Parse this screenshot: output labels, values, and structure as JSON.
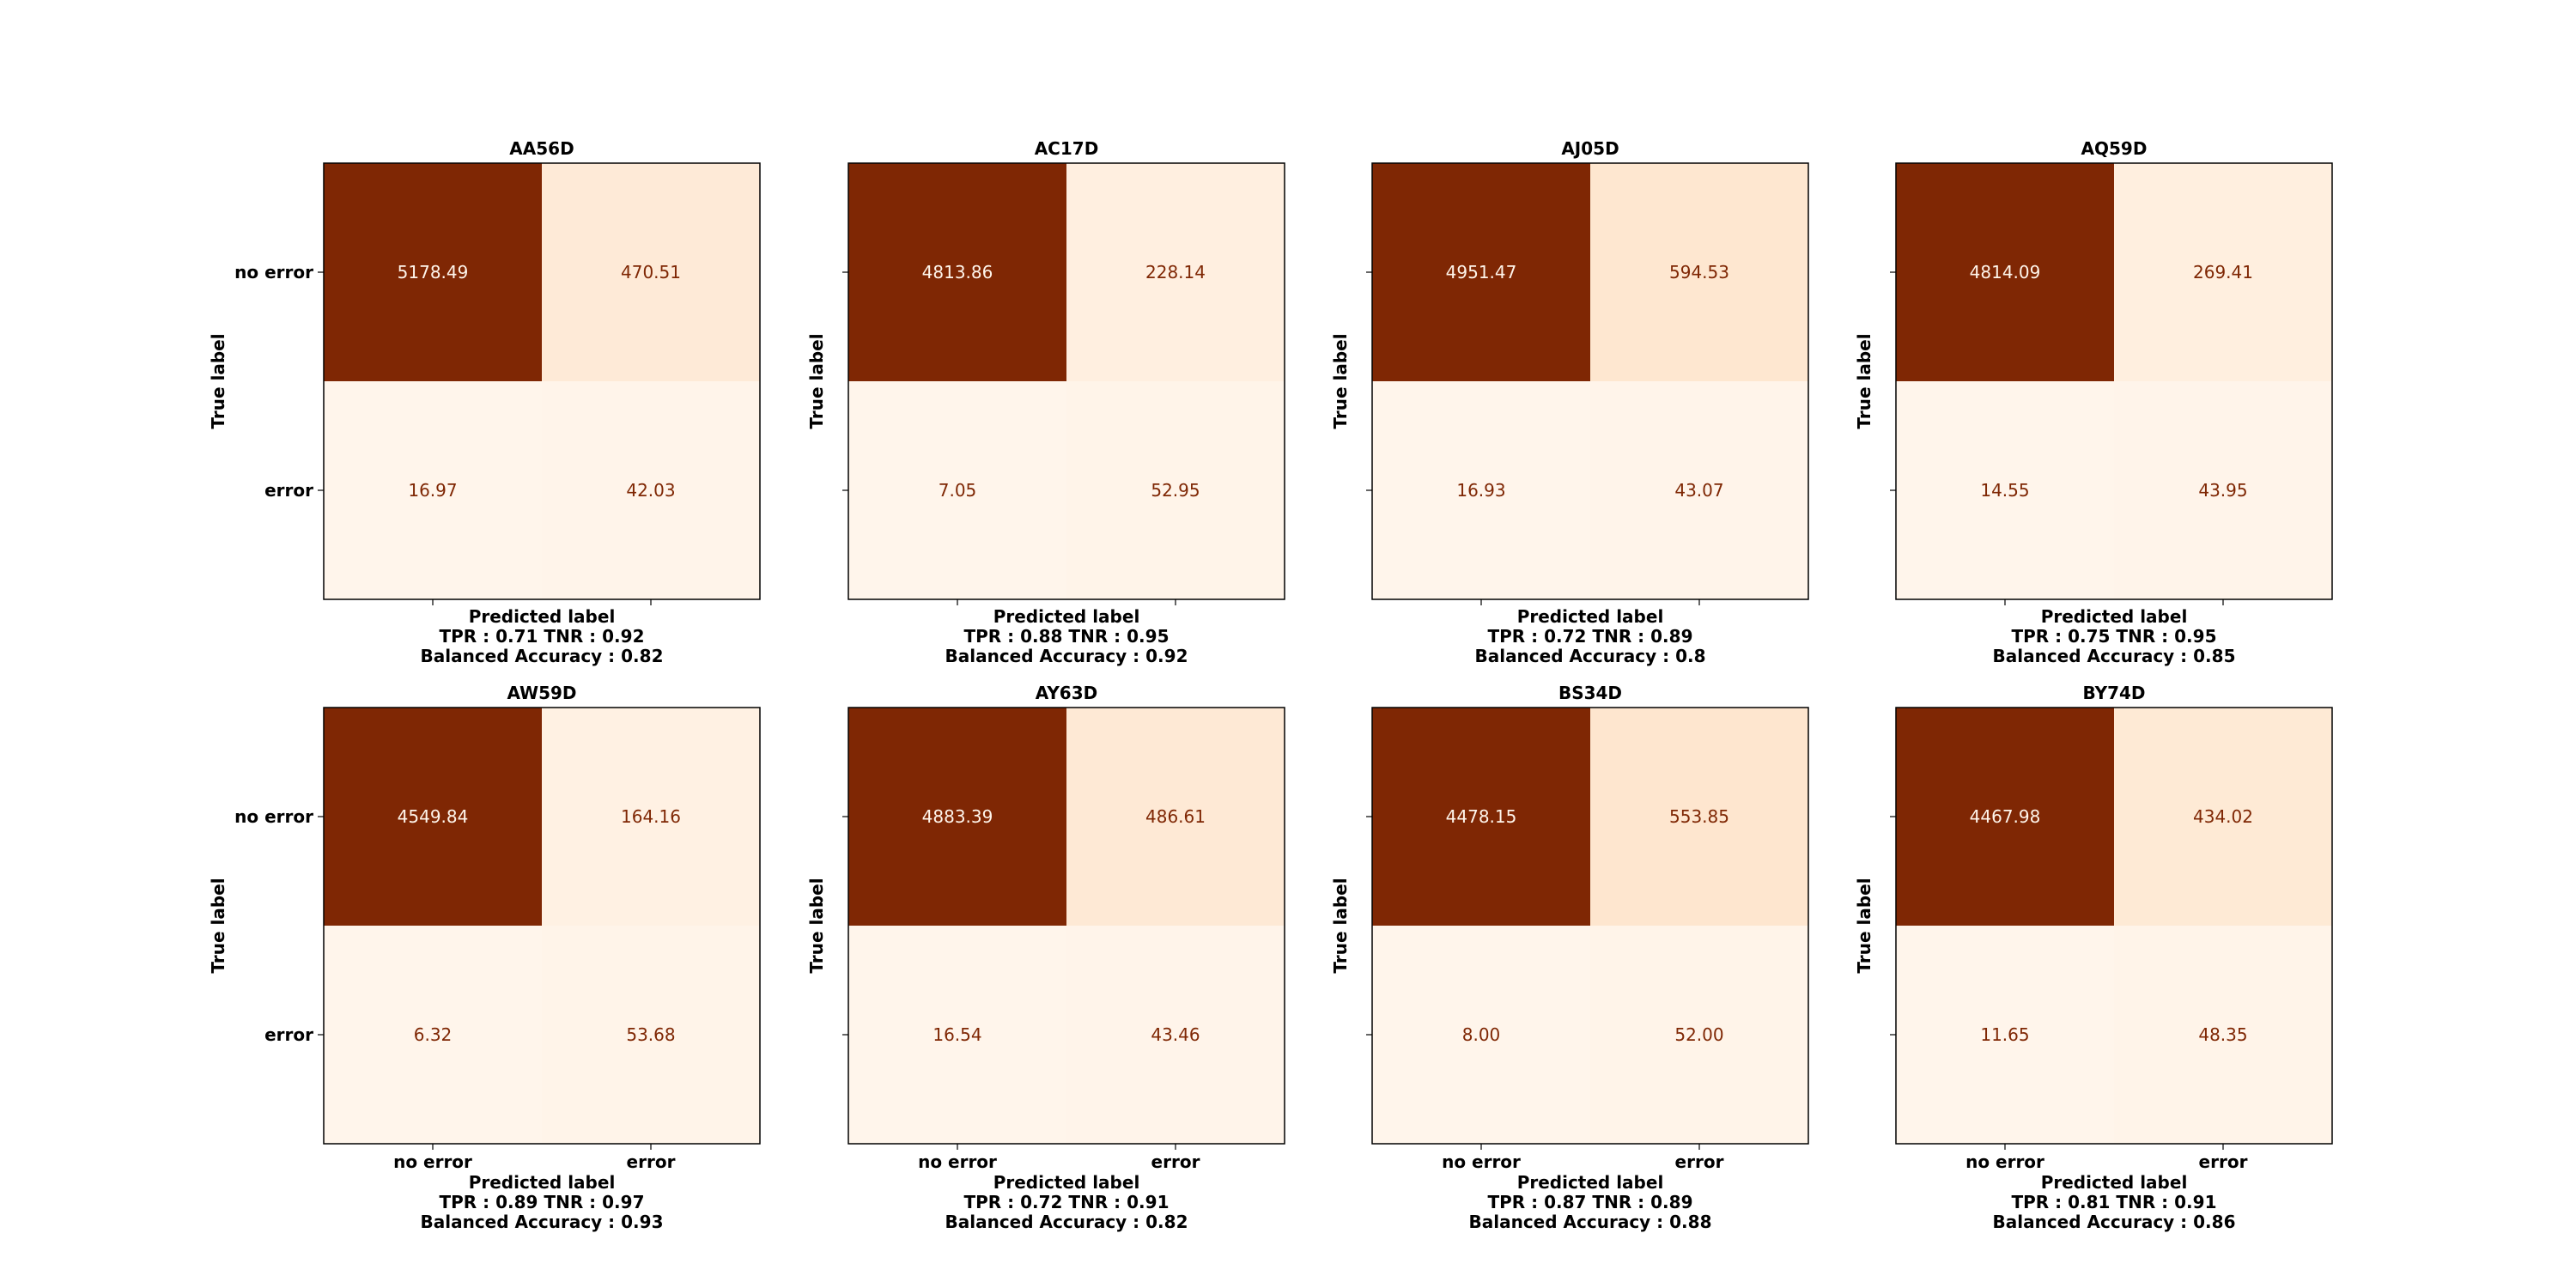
{
  "chart_data": [
    {
      "type": "heatmap",
      "title": "AA56D",
      "xlabel": "Predicted label",
      "ylabel": "True label",
      "x_categories": [
        "no error",
        "error"
      ],
      "y_categories": [
        "no error",
        "error"
      ],
      "values": [
        [
          5178.49,
          470.51
        ],
        [
          16.97,
          42.03
        ]
      ],
      "value_labels": [
        [
          "5178.49",
          "470.51"
        ],
        [
          "16.97",
          "42.03"
        ]
      ],
      "metrics": [
        "TPR : 0.71 TNR : 0.92",
        "Balanced Accuracy : 0.82"
      ],
      "show_x_ticklabels": false,
      "show_y_ticklabels": true
    },
    {
      "type": "heatmap",
      "title": "AC17D",
      "xlabel": "Predicted label",
      "ylabel": "True label",
      "x_categories": [
        "no error",
        "error"
      ],
      "y_categories": [
        "no error",
        "error"
      ],
      "values": [
        [
          4813.86,
          228.14
        ],
        [
          7.05,
          52.95
        ]
      ],
      "value_labels": [
        [
          "4813.86",
          "228.14"
        ],
        [
          "7.05",
          "52.95"
        ]
      ],
      "metrics": [
        "TPR : 0.88 TNR : 0.95",
        "Balanced Accuracy : 0.92"
      ],
      "show_x_ticklabels": false,
      "show_y_ticklabels": false
    },
    {
      "type": "heatmap",
      "title": "AJ05D",
      "xlabel": "Predicted label",
      "ylabel": "True label",
      "x_categories": [
        "no error",
        "error"
      ],
      "y_categories": [
        "no error",
        "error"
      ],
      "values": [
        [
          4951.47,
          594.53
        ],
        [
          16.93,
          43.07
        ]
      ],
      "value_labels": [
        [
          "4951.47",
          "594.53"
        ],
        [
          "16.93",
          "43.07"
        ]
      ],
      "metrics": [
        "TPR : 0.72 TNR : 0.89",
        "Balanced Accuracy : 0.8"
      ],
      "show_x_ticklabels": false,
      "show_y_ticklabels": false
    },
    {
      "type": "heatmap",
      "title": "AQ59D",
      "xlabel": "Predicted label",
      "ylabel": "True label",
      "x_categories": [
        "no error",
        "error"
      ],
      "y_categories": [
        "no error",
        "error"
      ],
      "values": [
        [
          4814.09,
          269.41
        ],
        [
          14.55,
          43.95
        ]
      ],
      "value_labels": [
        [
          "4814.09",
          "269.41"
        ],
        [
          "14.55",
          "43.95"
        ]
      ],
      "metrics": [
        "TPR : 0.75 TNR : 0.95",
        "Balanced Accuracy : 0.85"
      ],
      "show_x_ticklabels": false,
      "show_y_ticklabels": false
    },
    {
      "type": "heatmap",
      "title": "AW59D",
      "xlabel": "Predicted label",
      "ylabel": "True label",
      "x_categories": [
        "no error",
        "error"
      ],
      "y_categories": [
        "no error",
        "error"
      ],
      "values": [
        [
          4549.84,
          164.16
        ],
        [
          6.32,
          53.68
        ]
      ],
      "value_labels": [
        [
          "4549.84",
          "164.16"
        ],
        [
          "6.32",
          "53.68"
        ]
      ],
      "metrics": [
        "TPR : 0.89 TNR : 0.97",
        "Balanced Accuracy : 0.93"
      ],
      "show_x_ticklabels": true,
      "show_y_ticklabels": true
    },
    {
      "type": "heatmap",
      "title": "AY63D",
      "xlabel": "Predicted label",
      "ylabel": "True label",
      "x_categories": [
        "no error",
        "error"
      ],
      "y_categories": [
        "no error",
        "error"
      ],
      "values": [
        [
          4883.39,
          486.61
        ],
        [
          16.54,
          43.46
        ]
      ],
      "value_labels": [
        [
          "4883.39",
          "486.61"
        ],
        [
          "16.54",
          "43.46"
        ]
      ],
      "metrics": [
        "TPR : 0.72 TNR : 0.91",
        "Balanced Accuracy : 0.82"
      ],
      "show_x_ticklabels": true,
      "show_y_ticklabels": false
    },
    {
      "type": "heatmap",
      "title": "BS34D",
      "xlabel": "Predicted label",
      "ylabel": "True label",
      "x_categories": [
        "no error",
        "error"
      ],
      "y_categories": [
        "no error",
        "error"
      ],
      "values": [
        [
          4478.15,
          553.85
        ],
        [
          8.0,
          52.0
        ]
      ],
      "value_labels": [
        [
          "4478.15",
          "553.85"
        ],
        [
          "8.00",
          "52.00"
        ]
      ],
      "metrics": [
        "TPR : 0.87 TNR : 0.89",
        "Balanced Accuracy : 0.88"
      ],
      "show_x_ticklabels": true,
      "show_y_ticklabels": false
    },
    {
      "type": "heatmap",
      "title": "BY74D",
      "xlabel": "Predicted label",
      "ylabel": "True label",
      "x_categories": [
        "no error",
        "error"
      ],
      "y_categories": [
        "no error",
        "error"
      ],
      "values": [
        [
          4467.98,
          434.02
        ],
        [
          11.65,
          48.35
        ]
      ],
      "value_labels": [
        [
          "4467.98",
          "434.02"
        ],
        [
          "11.65",
          "48.35"
        ]
      ],
      "metrics": [
        "TPR : 0.81 TNR : 0.91",
        "Balanced Accuracy : 0.86"
      ],
      "show_x_ticklabels": true,
      "show_y_ticklabels": false
    }
  ],
  "colors": {
    "dark_cell": "#7f2704",
    "colormap": "Oranges",
    "light_text": "#fff5eb",
    "dark_text": "#7f2704"
  }
}
